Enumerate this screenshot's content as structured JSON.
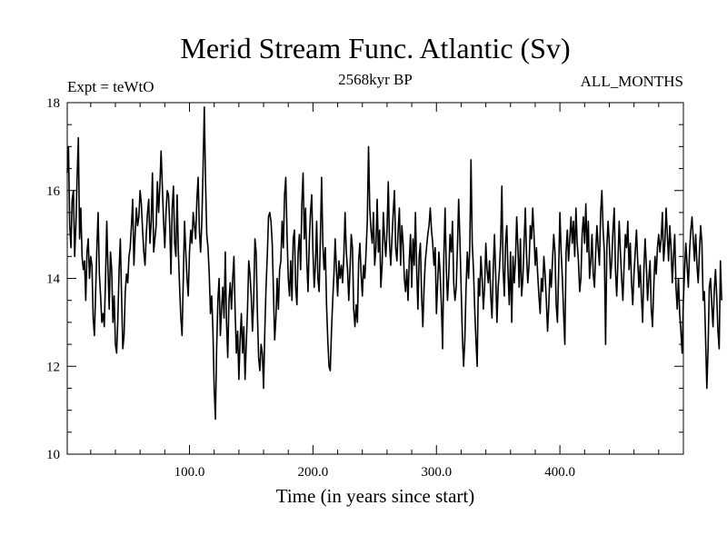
{
  "chart_data": {
    "type": "line",
    "title": "Merid Stream Func. Atlantic (Sv)",
    "subtitle_left": "Expt = teWtO",
    "subtitle_center": "2568kyr BP",
    "subtitle_right": "ALL_MONTHS",
    "xlabel": "Time (in years since start)",
    "ylabel": "",
    "xlim": [
      1,
      500
    ],
    "ylim": [
      10,
      18
    ],
    "x_ticks": [
      100,
      200,
      300,
      400
    ],
    "x_tick_labels": [
      "100.0",
      "200.0",
      "300.0",
      "400.0"
    ],
    "y_ticks": [
      10,
      12,
      14,
      16,
      18
    ],
    "y_tick_labels": [
      "10",
      "12",
      "14",
      "16",
      "18"
    ],
    "grid": false,
    "series": [
      {
        "name": "Merid Stream Func. Atlantic",
        "x_start": 1,
        "x_step": 1,
        "values": [
          16.4,
          17.0,
          15.2,
          14.7,
          15.8,
          16.0,
          14.5,
          15.2,
          16.3,
          17.2,
          14.9,
          15.6,
          14.5,
          14.2,
          14.4,
          13.5,
          14.6,
          14.9,
          14.0,
          14.5,
          14.3,
          13.1,
          12.7,
          13.7,
          14.7,
          15.5,
          14.1,
          13.6,
          13.0,
          13.2,
          12.9,
          14.0,
          15.3,
          14.2,
          13.3,
          14.6,
          14.2,
          13.0,
          13.6,
          12.5,
          12.3,
          13.1,
          14.2,
          14.9,
          13.6,
          12.4,
          12.7,
          13.7,
          14.1,
          13.9,
          14.5,
          14.7,
          15.2,
          15.8,
          14.3,
          15.0,
          15.6,
          15.2,
          15.4,
          16.0,
          15.7,
          15.1,
          14.6,
          14.3,
          15.0,
          15.5,
          15.8,
          14.8,
          15.3,
          16.4,
          14.6,
          14.9,
          15.2,
          16.2,
          15.5,
          16.1,
          16.9,
          16.1,
          15.3,
          14.7,
          15.5,
          16.0,
          15.9,
          15.2,
          14.1,
          15.6,
          16.1,
          14.8,
          14.5,
          15.9,
          14.6,
          13.8,
          13.1,
          12.7,
          14.0,
          15.3,
          14.6,
          14.0,
          13.6,
          14.6,
          15.1,
          14.8,
          15.5,
          15.2,
          14.9,
          15.8,
          16.3,
          15.1,
          14.6,
          15.3,
          16.5,
          17.9,
          16.2,
          15.0,
          14.7,
          14.1,
          13.2,
          13.6,
          12.8,
          11.5,
          10.8,
          12.4,
          13.5,
          14.0,
          12.7,
          13.3,
          13.8,
          13.1,
          14.6,
          13.0,
          12.2,
          13.5,
          13.9,
          13.3,
          14.0,
          14.5,
          13.2,
          12.3,
          12.8,
          11.7,
          12.6,
          13.2,
          12.3,
          12.9,
          11.7,
          12.5,
          13.3,
          14.4,
          14.1,
          13.6,
          12.8,
          13.5,
          14.9,
          14.6,
          13.2,
          12.2,
          11.9,
          12.5,
          12.3,
          11.5,
          12.8,
          13.8,
          14.5,
          15.4,
          15.5,
          15.3,
          14.8,
          13.7,
          12.6,
          13.1,
          14.0,
          13.3,
          14.2,
          14.4,
          15.3,
          14.7,
          15.9,
          16.3,
          15.0,
          14.0,
          13.6,
          14.4,
          13.5,
          14.9,
          15.1,
          13.8,
          13.4,
          14.6,
          15.0,
          14.2,
          15.7,
          16.4,
          14.9,
          15.6,
          14.4,
          13.7,
          14.8,
          15.5,
          15.9,
          14.6,
          13.8,
          14.3,
          15.3,
          14.0,
          13.7,
          14.9,
          16.3,
          14.8,
          14.2,
          14.7,
          13.4,
          12.6,
          12.0,
          11.9,
          12.8,
          13.5,
          14.1,
          14.9,
          14.2,
          13.6,
          14.4,
          14.0,
          14.3,
          13.9,
          14.5,
          15.5,
          14.6,
          14.2,
          13.5,
          14.2,
          15.0,
          14.7,
          13.3,
          12.9,
          13.4,
          13.0,
          14.4,
          14.8,
          14.1,
          13.6,
          14.3,
          14.0,
          14.6,
          15.3,
          17.0,
          15.6,
          15.1,
          14.8,
          15.5,
          14.3,
          14.7,
          15.8,
          14.6,
          15.1,
          13.8,
          14.3,
          15.5,
          14.9,
          14.5,
          15.1,
          16.2,
          14.8,
          14.3,
          14.9,
          15.5,
          16.0,
          14.7,
          14.4,
          15.1,
          15.6,
          14.3,
          15.2,
          14.8,
          14.0,
          13.7,
          14.2,
          13.5,
          14.4,
          15.0,
          13.8,
          14.9,
          14.3,
          15.5,
          14.2,
          13.3,
          14.5,
          14.8,
          13.6,
          12.9,
          13.8,
          14.4,
          14.7,
          15.0,
          15.2,
          15.6,
          15.1,
          14.8,
          14.3,
          14.7,
          13.2,
          13.9,
          14.6,
          14.1,
          13.4,
          12.4,
          14.5,
          15.6,
          14.2,
          13.5,
          14.1,
          15.0,
          14.6,
          15.3,
          13.9,
          13.5,
          13.8,
          14.7,
          15.8,
          14.9,
          13.8,
          12.7,
          12.0,
          12.6,
          13.8,
          14.6,
          14.0,
          14.7,
          16.7,
          14.8,
          14.2,
          13.3,
          12.6,
          12.0,
          14.0,
          13.6,
          14.5,
          14.0,
          13.3,
          13.8,
          14.8,
          14.2,
          13.9,
          14.4,
          13.6,
          13.1,
          14.2,
          15.0,
          14.1,
          13.0,
          13.8,
          14.2,
          14.8,
          16.1,
          14.2,
          13.6,
          14.8,
          15.2,
          14.1,
          13.4,
          14.6,
          13.0,
          14.5,
          13.9,
          14.4,
          15.4,
          14.7,
          13.8,
          14.9,
          13.6,
          14.0,
          14.8,
          15.6,
          14.5,
          13.9,
          14.3,
          15.2,
          14.9,
          15.6,
          15.0,
          14.3,
          14.7,
          14.1,
          13.6,
          13.2,
          14.0,
          13.7,
          14.5,
          14.1,
          13.5,
          12.8,
          13.4,
          14.2,
          13.8,
          14.4,
          15.0,
          14.6,
          13.4,
          13.0,
          14.2,
          15.5,
          14.6,
          14.0,
          13.2,
          12.5,
          14.6,
          15.1,
          14.4,
          14.9,
          15.4,
          14.8,
          15.3,
          14.5,
          15.6,
          14.8,
          14.4,
          13.7,
          14.0,
          15.0,
          15.4,
          14.8,
          15.7,
          14.6,
          15.3,
          14.0,
          14.4,
          15.0,
          14.1,
          13.8,
          14.6,
          15.2,
          14.7,
          14.3,
          15.5,
          16.0,
          15.1,
          14.6,
          12.5,
          14.7,
          15.3,
          14.8,
          14.0,
          14.4,
          15.1,
          15.6,
          14.2,
          13.6,
          14.4,
          15.3,
          14.6,
          14.0,
          13.5,
          14.3,
          15.0,
          14.7,
          15.3,
          14.2,
          14.8,
          13.9,
          13.4,
          14.1,
          14.6,
          15.1,
          14.4,
          13.8,
          14.3,
          13.6,
          13.0,
          14.2,
          14.9,
          14.3,
          13.5,
          14.0,
          14.4,
          13.3,
          12.9,
          13.8,
          14.5,
          14.1,
          14.7,
          15.0,
          14.6,
          14.9,
          15.5,
          14.4,
          14.8,
          15.6,
          15.0,
          14.4,
          15.2,
          14.7,
          13.9,
          14.5,
          15.0,
          13.8,
          13.3,
          14.0,
          13.2,
          12.8,
          12.3,
          13.5,
          14.2,
          14.8,
          14.3,
          13.8,
          14.6,
          15.1,
          15.4,
          14.9,
          14.4,
          15.0,
          14.3,
          13.9,
          14.6,
          15.2,
          14.8,
          13.5,
          13.7,
          12.6,
          11.5,
          12.4,
          13.8,
          14.0,
          13.4,
          12.9,
          13.7,
          14.2,
          13.6,
          12.8,
          12.4,
          14.4,
          13.5
        ]
      }
    ]
  }
}
